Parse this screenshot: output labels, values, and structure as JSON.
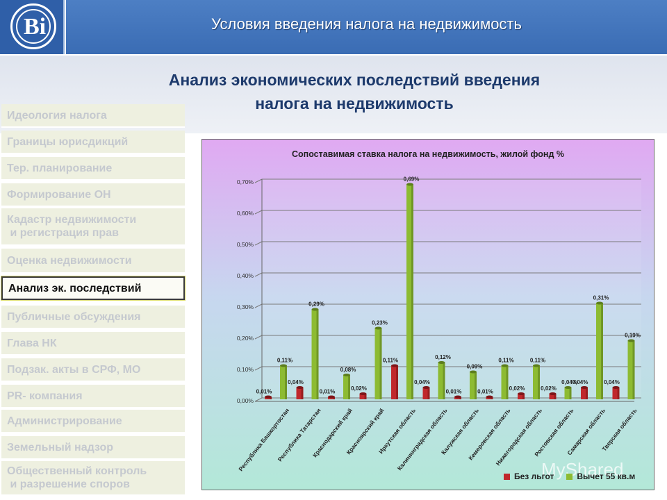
{
  "header": {
    "logo_letter": "Ві",
    "top_title": "Условия введения налога на недвижимость",
    "page_title_line1": "Анализ экономических последствий введения",
    "page_title_line2": "налога на недвижимость"
  },
  "nav": {
    "items": [
      {
        "label": "Идеология налога",
        "active": false
      },
      {
        "label": "Границы юрисдикций",
        "active": false
      },
      {
        "label": "Тер. планирование",
        "active": false
      },
      {
        "label": "Формирование ОН",
        "active": false
      },
      {
        "label": "Кадастр недвижимости\n и регистрация прав",
        "active": false
      },
      {
        "label": "Оценка недвижимости",
        "active": false
      },
      {
        "label": "Анализ эк. последствий",
        "active": true
      },
      {
        "label": "Публичные обсуждения",
        "active": false
      },
      {
        "label": "Глава НК",
        "active": false
      },
      {
        "label": "Подзак. акты в СРФ, МО",
        "active": false
      },
      {
        "label": "PR- компания",
        "active": false
      },
      {
        "label": "Администрирование",
        "active": false
      },
      {
        "label": "Земельный надзор",
        "active": false
      },
      {
        "label": "Общественный контроль\n и разрешение споров",
        "active": false
      }
    ]
  },
  "watermark": "MyShared",
  "colors": {
    "series1": "#c0282c",
    "series2": "#8dbb32"
  },
  "chart_data": {
    "type": "bar",
    "title": "Сопоставимая ставка налога на недвижимость, жилой фонд %",
    "categories": [
      "Республика Башкортостан",
      "Республика Татарстан",
      "Краснодарский край",
      "Красноярский край",
      "Иркутская область",
      "Калининградская область",
      "Калужская область",
      "Кемеровская область",
      "Нижегородская область",
      "Ростовская область",
      "Самарская область",
      "Тверская область"
    ],
    "series": [
      {
        "name": "Без льгот",
        "values": [
          0.01,
          0.04,
          0.01,
          0.02,
          0.11,
          0.04,
          0.01,
          0.01,
          0.02,
          0.02,
          0.04,
          0.04
        ],
        "labels": [
          "0,01%",
          "0,04%",
          "0,01%",
          "0,02%",
          "0,11%",
          "0,04%",
          "0,01%",
          "0,01%",
          "0,02%",
          "0,02%",
          "0,04%",
          "0,04%"
        ]
      },
      {
        "name": "Вычет 55 кв.м",
        "values": [
          0.11,
          0.29,
          0.08,
          0.23,
          0.69,
          0.12,
          0.09,
          0.11,
          0.11,
          0.04,
          0.31,
          0.19
        ],
        "labels": [
          "0,11%",
          "0,29%",
          "0,08%",
          "0,23%",
          "0,69%",
          "0,12%",
          "0,09%",
          "0,11%",
          "0,11%",
          "0,04%",
          "0,31%",
          "0,19%"
        ]
      }
    ],
    "yticks": [
      "0,00%",
      "0,10%",
      "0,20%",
      "0,30%",
      "0,40%",
      "0,50%",
      "0,60%",
      "0,70%"
    ],
    "ylim": [
      0,
      0.7
    ],
    "grid": true,
    "legend_position": "bottom-right"
  }
}
